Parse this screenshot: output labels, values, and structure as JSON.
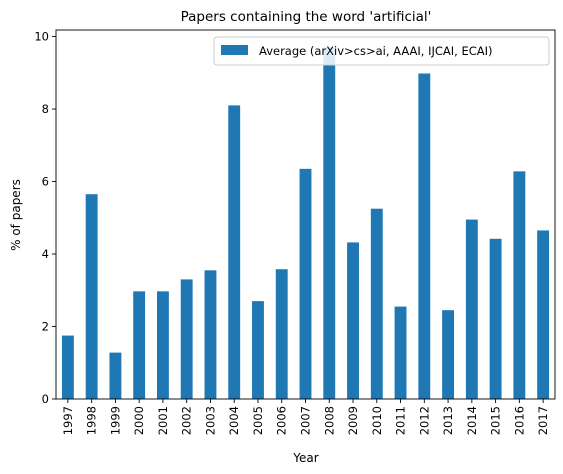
{
  "chart_data": {
    "type": "bar",
    "title": "Papers containing the word 'artificial'",
    "xlabel": "Year",
    "ylabel": "% of papers",
    "categories": [
      "1997",
      "1998",
      "1999",
      "2000",
      "2001",
      "2002",
      "2003",
      "2004",
      "2005",
      "2006",
      "2007",
      "2008",
      "2009",
      "2010",
      "2011",
      "2012",
      "2013",
      "2014",
      "2015",
      "2016",
      "2017"
    ],
    "series": [
      {
        "name": "Average (arXiv>cs>ai, AAAI, IJCAI, ECAI)",
        "color": "#1f77b4",
        "values": [
          1.75,
          5.65,
          1.28,
          2.97,
          2.97,
          3.3,
          3.55,
          8.1,
          2.7,
          3.58,
          6.35,
          9.7,
          4.32,
          5.25,
          2.55,
          8.98,
          2.45,
          4.95,
          4.42,
          6.28,
          4.65
        ]
      }
    ],
    "ylim": [
      0,
      10.18
    ],
    "yticks": [
      0,
      2,
      4,
      6,
      8,
      10
    ],
    "grid": false,
    "legend_position": "top-right"
  }
}
